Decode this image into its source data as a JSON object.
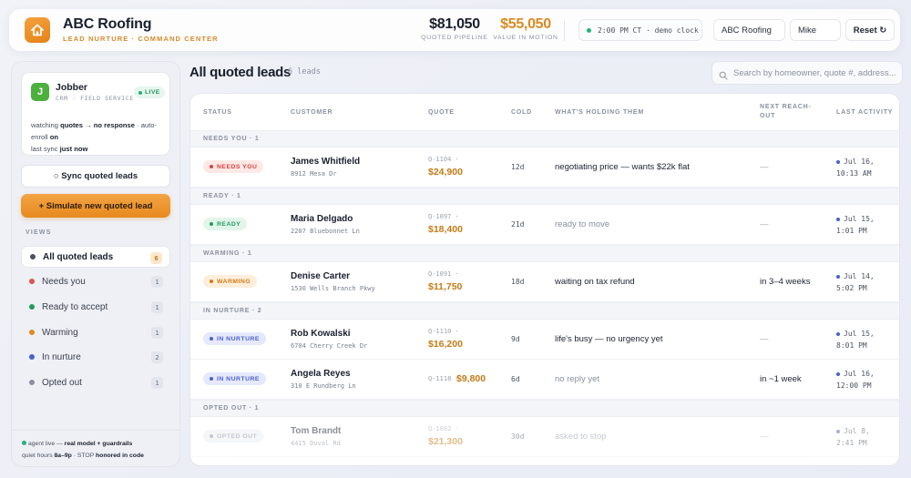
{
  "header": {
    "app_title": "ABC Roofing",
    "subtitle": "LEAD NURTURE · COMMAND CENTER",
    "metrics": [
      {
        "value": "$81,050",
        "label": "QUOTED PIPELINE"
      },
      {
        "value": "$55,050",
        "label": "VALUE IN MOTION"
      }
    ],
    "clock": "2:00 PM CT · demo clock",
    "company_value": "ABC Roofing",
    "user_value": "Mike",
    "reset_label": "Reset ↻"
  },
  "sidebar": {
    "crm_name": "Jobber",
    "crm_logo": "J",
    "crm_sub": "CRM · FIELD SERVICE",
    "live_label": "LIVE",
    "crm_line1_a": "watching ",
    "crm_line1_b": "quotes → no response",
    "crm_line1_c": " · auto-enroll ",
    "crm_line1_d": "on",
    "crm_line2_a": "last sync ",
    "crm_line2_b": "just now",
    "sync_label": "○ Sync quoted leads",
    "simulate_label": "+ Simulate new quoted lead",
    "views_label": "VIEWS",
    "views": [
      {
        "label": "All quoted leads",
        "count": "6",
        "color": "#4a5060"
      },
      {
        "label": "Needs you",
        "count": "1",
        "color": "#e0524a"
      },
      {
        "label": "Ready to accept",
        "count": "1",
        "color": "#24995d"
      },
      {
        "label": "Warming",
        "count": "1",
        "color": "#e28a1c"
      },
      {
        "label": "In nurture",
        "count": "2",
        "color": "#4a5fd0"
      },
      {
        "label": "Opted out",
        "count": "1",
        "color": "#8a90a0"
      }
    ],
    "footer_line1_a": "agent live — ",
    "footer_line1_b": "real model + guardrails",
    "footer_line2_a": "quiet hours ",
    "footer_line2_b": "8a–9p",
    "footer_line2_c": " · STOP ",
    "footer_line2_d": "honored in code"
  },
  "main": {
    "title": "All quoted leads",
    "count_label": "6 leads",
    "search_placeholder": "Search by homeowner, quote #, address..."
  },
  "table": {
    "columns": [
      "STATUS",
      "CUSTOMER",
      "QUOTE",
      "COLD",
      "WHAT'S HOLDING THEM",
      "NEXT REACH-OUT",
      "LAST ACTIVITY"
    ],
    "groups": [
      {
        "label": "NEEDS YOU · 1",
        "rows": [
          {
            "status": "NEEDS YOU",
            "pill_bg": "#fde8e6",
            "pill_fg": "#d8443c",
            "name": "James Whitfield",
            "address": "8912 Mesa Dr",
            "quote_id": "Q-1104 ·",
            "quote_amt": "$24,900",
            "cold": "12d",
            "holding": "negotiating price — wants $22k flat",
            "reach": "—",
            "act1": "Jul 16,",
            "act2": "10:13 AM"
          }
        ]
      },
      {
        "label": "READY · 1",
        "rows": [
          {
            "status": "READY",
            "pill_bg": "#e2f5ea",
            "pill_fg": "#24995d",
            "name": "Maria Delgado",
            "address": "2207 Bluebonnet Ln",
            "quote_id": "Q-1097 ·",
            "quote_amt": "$18,400",
            "cold": "21d",
            "holding": "ready to move",
            "reach": "—",
            "act1": "Jul 15,",
            "act2": "1:01 PM"
          }
        ]
      },
      {
        "label": "WARMING · 1",
        "rows": [
          {
            "status": "WARMING",
            "pill_bg": "#fdeedb",
            "pill_fg": "#d37c14",
            "name": "Denise Carter",
            "address": "1530 Wells Branch Pkwy",
            "quote_id": "Q-1091 ·",
            "quote_amt": "$11,750",
            "cold": "18d",
            "holding": "waiting on tax refund",
            "reach": "in 3–4 weeks",
            "act1": "Jul 14,",
            "act2": "5:02 PM"
          }
        ]
      },
      {
        "label": "IN NURTURE · 2",
        "rows": [
          {
            "status": "IN NURTURE",
            "pill_bg": "#e5e9fb",
            "pill_fg": "#4a5fd0",
            "name": "Rob Kowalski",
            "address": "6704 Cherry Creek Dr",
            "quote_id": "Q-1110 ·",
            "quote_amt": "$16,200",
            "cold": "9d",
            "holding": "life's busy — no urgency yet",
            "reach": "—",
            "act1": "Jul 15,",
            "act2": "8:01 PM"
          },
          {
            "status": "IN NURTURE",
            "pill_bg": "#e5e9fb",
            "pill_fg": "#4a5fd0",
            "name": "Angela Reyes",
            "address": "310 E Rundberg Ln",
            "quote_id": "Q-1118 ·",
            "quote_amt": "$9,800",
            "cold": "6d",
            "holding": "no reply yet",
            "reach": "in ~1 week",
            "act1": "Jul 16,",
            "act2": "12:00 PM"
          }
        ]
      },
      {
        "label": "OPTED OUT · 1",
        "rows": [
          {
            "status": "OPTED OUT",
            "pill_bg": "#eceef2",
            "pill_fg": "#8a90a0",
            "name": "Tom Brandt",
            "address": "4415 Duval Rd",
            "quote_id": "Q-1082 ·",
            "quote_amt": "$21,300",
            "cold": "30d",
            "holding": "asked to stop",
            "reach": "—",
            "act1": "Jul 8,",
            "act2": "2:41 PM"
          }
        ]
      }
    ]
  }
}
